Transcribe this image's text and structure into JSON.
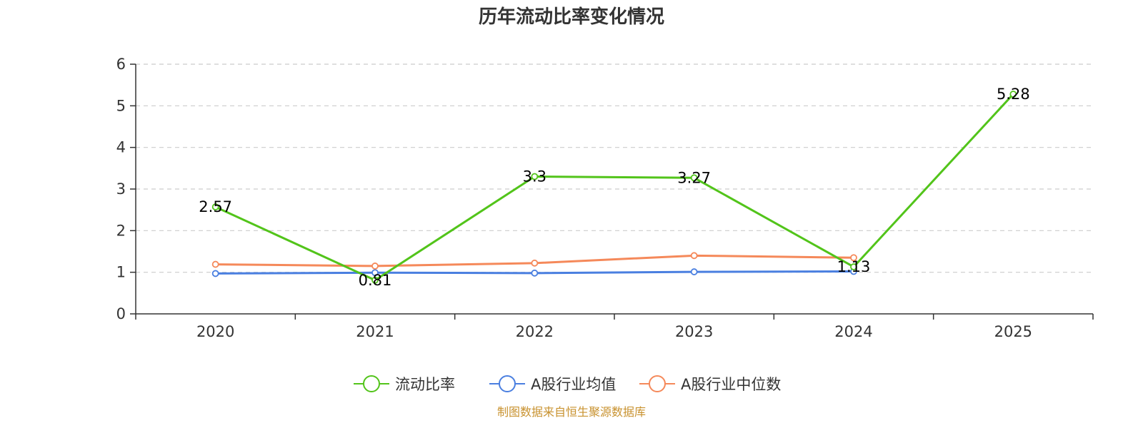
{
  "chart_data": {
    "type": "line",
    "title": "历年流动比率变化情况",
    "xlabel": "",
    "ylabel": "",
    "categories": [
      "2020",
      "2021",
      "2022",
      "2023",
      "2024",
      "2025"
    ],
    "ylim": [
      0,
      6
    ],
    "yticks": [
      "0",
      "1",
      "2",
      "3",
      "4",
      "5",
      "6"
    ],
    "grid": true,
    "legend_position": "bottom-center",
    "series": [
      {
        "name": "流动比率",
        "color": "#52c41a",
        "values": [
          2.57,
          0.81,
          3.3,
          3.27,
          1.13,
          5.28
        ],
        "labels": [
          "2.57",
          "0.81",
          "3.3",
          "3.27",
          "1.13",
          "5.28"
        ]
      },
      {
        "name": "A股行业均值",
        "color": "#4a7fe0",
        "values": [
          0.97,
          0.99,
          0.98,
          1.01,
          1.02,
          null
        ]
      },
      {
        "name": "A股行业中位数",
        "color": "#f5895a",
        "values": [
          1.19,
          1.15,
          1.22,
          1.4,
          1.35,
          null
        ]
      }
    ],
    "source": "制图数据来自恒生聚源数据库"
  }
}
